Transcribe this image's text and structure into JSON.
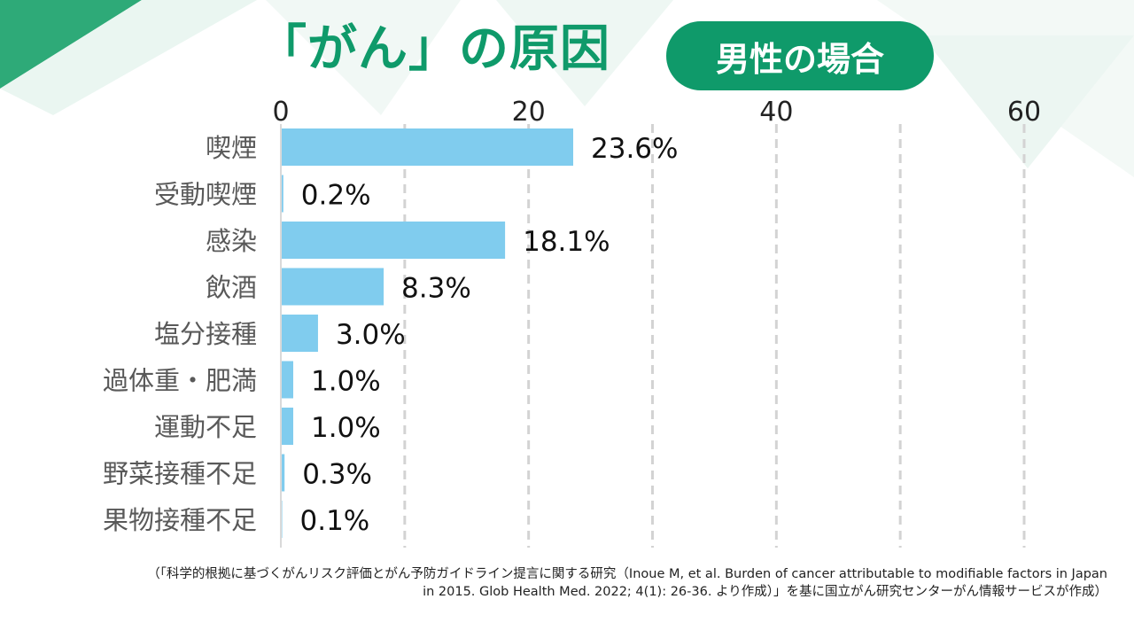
{
  "title": "「がん」の原因",
  "badge": "男性の場合",
  "colors": {
    "accent": "#0f9a6a",
    "bar": "#80ccee",
    "grid": "#d3d3d3",
    "label": "#595959",
    "value": "#111111"
  },
  "chart_data": {
    "type": "bar",
    "orientation": "horizontal",
    "categories": [
      "喫煙",
      "受動喫煙",
      "感染",
      "飲酒",
      "塩分接種",
      "過体重・肥満",
      "運動不足",
      "野菜接種不足",
      "果物接種不足"
    ],
    "values": [
      23.6,
      0.2,
      18.1,
      8.3,
      3.0,
      1.0,
      1.0,
      0.3,
      0.1
    ],
    "value_labels": [
      "23.6%",
      "0.2%",
      "18.1%",
      "8.3%",
      "3.0%",
      "1.0%",
      "1.0%",
      "0.3%",
      "0.1%"
    ],
    "x_ticks": [
      "0",
      "20",
      "40",
      "60"
    ],
    "tick_values": [
      0,
      20,
      40,
      60
    ],
    "xlim": [
      0,
      60
    ],
    "grid": true,
    "axis_position": "top"
  },
  "source": {
    "line1": "（「科学的根拠に基づくがんリスク評価とがん予防ガイドライン提言に関する研究（Inoue M, et al. Burden of cancer attributable to modifiable factors in Japan",
    "line2": "in 2015. Glob Health Med. 2022; 4(1): 26-36. より作成）」を基に国立がん研究センターがん情報サービスが作成）"
  }
}
